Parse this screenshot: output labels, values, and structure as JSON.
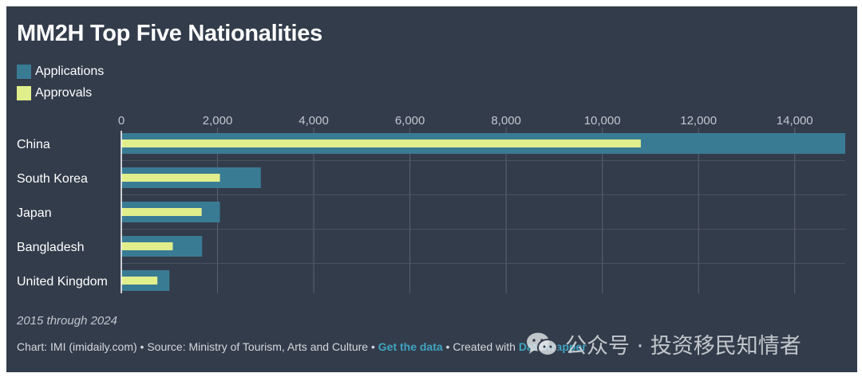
{
  "title": "MM2H Top Five Nationalities",
  "legend": [
    {
      "label": "Applications",
      "color": "#3a7b94"
    },
    {
      "label": "Approvals",
      "color": "#e1ee8c"
    }
  ],
  "notes": "2015 through 2024",
  "footer": {
    "chart_by": "Chart: IMI (imidaily.com)",
    "sep1": " • ",
    "source": "Source: Ministry of Tourism, Arts and Culture",
    "sep2": " • ",
    "get_data": "Get the data",
    "sep3": " • ",
    "created_with": "Created with ",
    "tool": "Datawrapper"
  },
  "watermark": {
    "icon": "wechat-icon",
    "text": "公众号 · 投资移民知情者"
  },
  "chart_data": {
    "type": "bar",
    "orientation": "horizontal",
    "title": "MM2H Top Five Nationalities",
    "categories": [
      "China",
      "South Korea",
      "Japan",
      "Bangladesh",
      "United Kingdom"
    ],
    "series": [
      {
        "name": "Applications",
        "color": "#3a7b94",
        "values": [
          15050,
          2900,
          2050,
          1680,
          1000
        ]
      },
      {
        "name": "Approvals",
        "color": "#e1ee8c",
        "values": [
          10800,
          2050,
          1670,
          1070,
          750
        ]
      }
    ],
    "xlim": [
      0,
      15050
    ],
    "xticks": [
      0,
      2000,
      4000,
      6000,
      8000,
      10000,
      12000,
      14000
    ],
    "xtick_labels": [
      "0",
      "2,000",
      "4,000",
      "6,000",
      "8,000",
      "10,000",
      "12,000",
      "14,000"
    ],
    "axis_position": "top",
    "grid": true
  }
}
